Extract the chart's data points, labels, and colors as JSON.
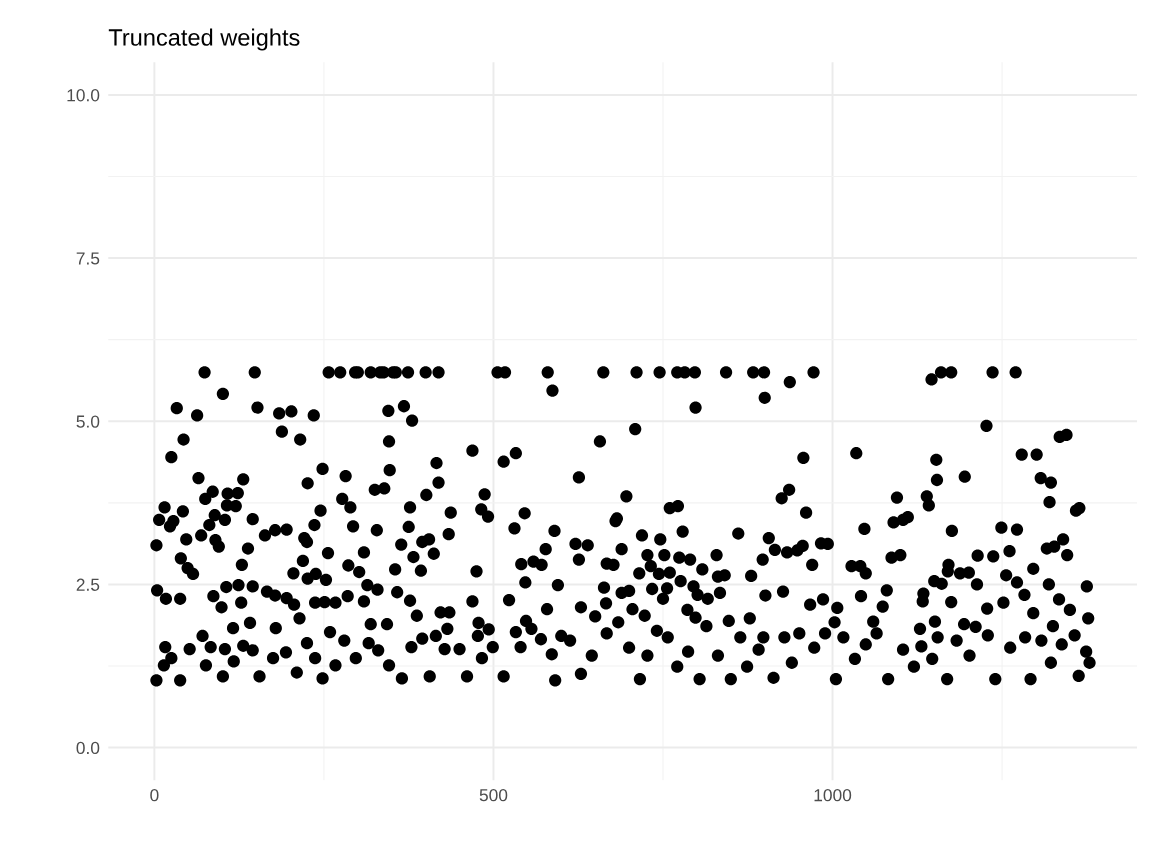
{
  "chart_data": {
    "type": "scatter",
    "title": "Truncated weights",
    "xlim": [
      -68,
      1449
    ],
    "ylim": [
      -0.5,
      10.5
    ],
    "xticks": [
      0,
      500,
      1000
    ],
    "yticks": [
      {
        "value": 0,
        "label": "0.0"
      },
      {
        "value": 2.5,
        "label": "2.5"
      },
      {
        "value": 5,
        "label": "5.0"
      },
      {
        "value": 7.5,
        "label": "7.5"
      },
      {
        "value": 10,
        "label": "10.0"
      }
    ],
    "grid": true,
    "marker": "circle",
    "series": [
      {
        "color": "#000000",
        "x": [
          74,
          148,
          257,
          274,
          296,
          300,
          319,
          333,
          338,
          352,
          356,
          374,
          400,
          419,
          506,
          517,
          580,
          662,
          711,
          745,
          771,
          782,
          797,
          843,
          883,
          899,
          972,
          1160,
          1175,
          1236,
          1270,
          1146,
          937,
          101,
          33,
          152,
          63,
          184,
          202,
          235,
          188,
          43,
          215,
          25,
          345,
          368,
          380,
          346,
          587,
          469,
          515,
          533,
          248,
          282,
          65,
          131,
          416,
          347,
          419,
          226,
          325,
          339,
          86,
          123,
          108,
          401,
          487,
          75,
          277,
          15,
          107,
          120,
          289,
          377,
          245,
          42,
          437,
          482,
          546,
          7,
          28,
          89,
          104,
          145,
          23,
          81,
          236,
          293,
          375,
          492,
          531,
          590,
          69,
          163,
          178,
          195,
          328,
          434,
          3,
          47,
          90,
          95,
          221,
          225,
          364,
          395,
          405,
          138,
          256,
          309,
          382,
          412,
          577,
          39,
          129,
          219,
          541,
          559,
          571,
          49,
          57,
          286,
          302,
          355,
          393,
          205,
          238,
          253,
          226,
          475,
          547,
          4,
          106,
          124,
          145,
          314,
          329,
          595,
          17,
          38,
          87,
          99,
          128,
          166,
          178,
          195,
          206,
          237,
          251,
          267,
          285,
          309,
          358,
          377,
          469,
          523,
          579,
          214,
          141,
          319,
          343,
          387,
          422,
          435,
          478,
          179,
          116,
          432,
          533,
          493,
          3,
          14,
          16,
          25,
          38,
          52,
          71,
          76,
          83,
          101,
          104,
          117,
          131,
          145,
          155,
          175,
          194,
          210,
          225,
          237,
          248,
          259,
          267,
          280,
          297,
          316,
          330,
          346,
          365,
          379,
          395,
          406,
          415,
          428,
          450,
          461,
          477,
          483,
          499,
          515,
          540,
          548,
          556,
          570,
          586,
          591,
          600,
          657,
          709,
          798,
          900,
          1227,
          1335,
          1345,
          626,
          957,
          1035,
          1153,
          1279,
          1301,
          1154,
          1195,
          1307,
          1322,
          696,
          936,
          925,
          760,
          772,
          1095,
          1139,
          1142,
          1320,
          961,
          1359,
          1364,
          680,
          682,
          779,
          861,
          906,
          1047,
          1090,
          1104,
          1111,
          1176,
          1249,
          1272,
          621,
          639,
          719,
          746,
          689,
          915,
          933,
          948,
          956,
          983,
          993,
          1261,
          1316,
          1327,
          1340,
          626,
          667,
          677,
          727,
          752,
          774,
          790,
          829,
          897,
          970,
          1214,
          1237,
          1346,
          715,
          732,
          744,
          760,
          776,
          808,
          831,
          841,
          880,
          1028,
          1041,
          1049,
          1087,
          1100,
          1171,
          1170,
          1188,
          1201,
          1296,
          1256,
          663,
          689,
          700,
          734,
          756,
          795,
          801,
          816,
          834,
          901,
          927,
          1042,
          1080,
          1134,
          1150,
          1161,
          1213,
          1272,
          1319,
          1375,
          666,
          629,
          650,
          705,
          723,
          750,
          786,
          798,
          847,
          878,
          967,
          986,
          1003,
          1007,
          1074,
          1133,
          1151,
          1175,
          1228,
          1252,
          1283,
          1296,
          1334,
          1350,
          1377,
          741,
          898,
          1060,
          1129,
          1194,
          1211,
          1325,
          613,
          629,
          645,
          667,
          684,
          700,
          716,
          727,
          757,
          771,
          787,
          804,
          814,
          831,
          850,
          864,
          874,
          891,
          913,
          929,
          940,
          951,
          973,
          989,
          1005,
          1016,
          1033,
          1049,
          1065,
          1082,
          1104,
          1120,
          1131,
          1147,
          1155,
          1169,
          1183,
          1202,
          1229,
          1240,
          1262,
          1284,
          1292,
          1308,
          1322,
          1338,
          1357,
          1363,
          1374,
          1379
        ],
        "values": [
          5.75,
          5.75,
          5.75,
          5.75,
          5.75,
          5.75,
          5.75,
          5.75,
          5.75,
          5.75,
          5.75,
          5.75,
          5.75,
          5.75,
          5.75,
          5.75,
          5.75,
          5.75,
          5.75,
          5.75,
          5.75,
          5.75,
          5.75,
          5.75,
          5.75,
          5.75,
          5.75,
          5.75,
          5.75,
          5.75,
          5.75,
          5.64,
          5.6,
          5.42,
          5.2,
          5.21,
          5.09,
          5.12,
          5.15,
          5.09,
          4.84,
          4.72,
          4.72,
          4.45,
          5.16,
          5.23,
          5.01,
          4.69,
          5.47,
          4.55,
          4.38,
          4.51,
          4.27,
          4.16,
          4.13,
          4.11,
          4.36,
          4.25,
          4.06,
          4.05,
          3.95,
          3.97,
          3.92,
          3.9,
          3.89,
          3.87,
          3.88,
          3.81,
          3.81,
          3.68,
          3.71,
          3.7,
          3.68,
          3.68,
          3.63,
          3.62,
          3.6,
          3.65,
          3.59,
          3.49,
          3.47,
          3.56,
          3.49,
          3.5,
          3.39,
          3.41,
          3.41,
          3.39,
          3.38,
          3.54,
          3.36,
          3.32,
          3.25,
          3.25,
          3.33,
          3.34,
          3.33,
          3.27,
          3.1,
          3.19,
          3.18,
          3.08,
          3.21,
          3.15,
          3.11,
          3.15,
          3.19,
          3.05,
          2.98,
          2.99,
          2.92,
          2.97,
          3.04,
          2.9,
          2.8,
          2.86,
          2.81,
          2.85,
          2.8,
          2.75,
          2.66,
          2.79,
          2.69,
          2.73,
          2.71,
          2.67,
          2.66,
          2.57,
          2.59,
          2.7,
          2.53,
          2.41,
          2.46,
          2.49,
          2.47,
          2.49,
          2.42,
          2.49,
          2.28,
          2.28,
          2.32,
          2.15,
          2.22,
          2.39,
          2.33,
          2.29,
          2.19,
          2.22,
          2.23,
          2.22,
          2.32,
          2.24,
          2.38,
          2.25,
          2.24,
          2.26,
          2.12,
          1.98,
          1.91,
          1.89,
          1.89,
          2.02,
          2.07,
          2.07,
          1.91,
          1.83,
          1.83,
          1.82,
          1.77,
          1.81,
          1.03,
          1.26,
          1.54,
          1.37,
          1.03,
          1.51,
          1.71,
          1.26,
          1.54,
          1.09,
          1.51,
          1.32,
          1.56,
          1.49,
          1.09,
          1.37,
          1.46,
          1.15,
          1.6,
          1.37,
          1.06,
          1.77,
          1.26,
          1.64,
          1.37,
          1.6,
          1.49,
          1.26,
          1.06,
          1.54,
          1.67,
          1.09,
          1.71,
          1.51,
          1.51,
          1.09,
          1.71,
          1.37,
          1.54,
          1.09,
          1.54,
          1.94,
          1.82,
          1.66,
          1.43,
          1.03,
          1.71,
          4.69,
          4.88,
          5.21,
          5.36,
          4.93,
          4.76,
          4.79,
          4.14,
          4.44,
          4.51,
          4.41,
          4.49,
          4.49,
          4.1,
          4.15,
          4.13,
          4.06,
          3.85,
          3.95,
          3.82,
          3.67,
          3.7,
          3.83,
          3.85,
          3.71,
          3.76,
          3.6,
          3.63,
          3.67,
          3.47,
          3.51,
          3.31,
          3.28,
          3.21,
          3.35,
          3.45,
          3.49,
          3.53,
          3.32,
          3.37,
          3.34,
          3.12,
          3.1,
          3.25,
          3.19,
          3.04,
          3.03,
          2.99,
          3.02,
          3.09,
          3.13,
          3.12,
          3.01,
          3.05,
          3.08,
          3.19,
          2.88,
          2.82,
          2.8,
          2.95,
          2.95,
          2.91,
          2.88,
          2.95,
          2.88,
          2.8,
          2.94,
          2.93,
          2.95,
          2.67,
          2.78,
          2.66,
          2.68,
          2.55,
          2.73,
          2.62,
          2.64,
          2.63,
          2.78,
          2.78,
          2.67,
          2.91,
          2.95,
          2.8,
          2.7,
          2.67,
          2.68,
          2.74,
          2.64,
          2.45,
          2.37,
          2.4,
          2.43,
          2.44,
          2.47,
          2.34,
          2.28,
          2.37,
          2.33,
          2.39,
          2.32,
          2.41,
          2.36,
          2.55,
          2.51,
          2.5,
          2.53,
          2.5,
          2.47,
          2.21,
          2.15,
          2.01,
          2.12,
          2.02,
          2.28,
          2.11,
          1.99,
          1.94,
          1.98,
          2.19,
          2.27,
          1.92,
          2.14,
          2.16,
          2.24,
          1.93,
          2.23,
          2.13,
          2.22,
          2.34,
          2.06,
          2.27,
          2.11,
          1.98,
          1.79,
          1.69,
          1.93,
          1.82,
          1.89,
          1.85,
          1.86,
          1.64,
          1.13,
          1.41,
          1.75,
          1.92,
          1.53,
          1.05,
          1.41,
          1.69,
          1.24,
          1.47,
          1.05,
          1.86,
          1.41,
          1.05,
          1.69,
          1.24,
          1.5,
          1.07,
          1.69,
          1.3,
          1.75,
          1.53,
          1.75,
          1.05,
          1.69,
          1.36,
          1.58,
          1.75,
          1.05,
          1.5,
          1.24,
          1.55,
          1.36,
          1.69,
          1.05,
          1.64,
          1.41,
          1.72,
          1.05,
          1.53,
          1.69,
          1.05,
          1.64,
          1.3,
          1.58,
          1.72,
          1.1,
          1.47,
          1.3
        ]
      }
    ]
  }
}
